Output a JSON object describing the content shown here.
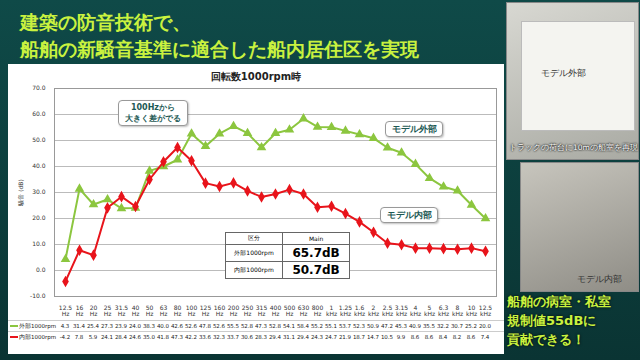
{
  "header": {
    "title": [
      "建築の防音技術で、",
      "船舶の新騒音基準に適合した船内居住区を実現"
    ]
  },
  "photos": {
    "labels": [
      "モデル外部",
      "トラックの荷台に10mの船室を再現",
      "モデル内部"
    ]
  },
  "note": [
    "船舶の病室・私室",
    "規制値55dBに",
    "貢献できる！"
  ],
  "chart_data": {
    "type": "line",
    "title": "回転数1000rpm時",
    "y_label": "騒音 (dB)",
    "categories": [
      "12.5Hz",
      "16Hz",
      "20Hz",
      "25Hz",
      "31.5Hz",
      "40Hz",
      "50Hz",
      "63Hz",
      "80Hz",
      "100Hz",
      "125Hz",
      "160Hz",
      "200Hz",
      "250Hz",
      "315Hz",
      "400Hz",
      "500Hz",
      "630Hz",
      "800Hz",
      "1kHz",
      "1.25kHz",
      "1.6kHz",
      "2kHz",
      "2.5kHz",
      "3.15kHz",
      "4kHz",
      "5kHz",
      "6.3kHz",
      "8kHz",
      "10kHz",
      "12.5kHz"
    ],
    "series": [
      {
        "name": "外部1000rpm",
        "color": "#8cc63f",
        "marker": "triangle",
        "values": [
          4.3,
          31.4,
          25.4,
          27.3,
          23.9,
          24.0,
          38.3,
          40.0,
          42.6,
          52.6,
          47.8,
          52.6,
          55.5,
          52.8,
          47.3,
          52.8,
          54.1,
          58.4,
          55.2,
          55.1,
          53.7,
          52.3,
          50.9,
          47.2,
          45.3,
          40.9,
          35.5,
          32.2,
          30.7,
          25.2,
          20.0
        ],
        "value_labels": [
          "4.3",
          "31.4",
          "25.4",
          "27.3",
          "23.9",
          "24.0",
          "38.3",
          "40.0",
          "42.6",
          "52.6",
          "47.8",
          "52.6",
          "55.5",
          "52.8",
          "47.3",
          "52.8",
          "54.1",
          "58.4",
          "55.2",
          "55.1",
          "53.7",
          "52.3",
          "50.9",
          "47.2",
          "45.3",
          "40.9",
          "35.5",
          "32.2",
          "30.7",
          "25.2",
          "20.0"
        ]
      },
      {
        "name": "内部1000rpm",
        "color": "#e8141b",
        "marker": "diamond",
        "values": [
          -4.2,
          7.8,
          5.9,
          24.1,
          28.4,
          24.6,
          35.0,
          41.8,
          47.3,
          42.2,
          33.6,
          32.3,
          33.7,
          30.6,
          28.3,
          29.4,
          31.1,
          29.4,
          24.3,
          24.7,
          21.9,
          18.7,
          14.7,
          10.5,
          9.9,
          8.6,
          8.6,
          8.4,
          8.2,
          8.6,
          7.4
        ],
        "value_labels": [
          "-4.2",
          "7.8",
          "5.9",
          "24.1",
          "28.4",
          "24.6",
          "35.0",
          "41.8",
          "47.3",
          "42.2",
          "33.6",
          "32.3",
          "33.7",
          "30.6",
          "28.3",
          "29.4",
          "31.1",
          "29.4",
          "24.3",
          "24.7",
          "21.9",
          "18.7",
          "14.7",
          "10.5",
          "9.9",
          "8.6",
          "8.6",
          "8.4",
          "8.2",
          "8.6",
          "7.4"
        ]
      }
    ],
    "ylim": [
      -10,
      70
    ],
    "yticks": [
      {
        "value": -10,
        "label": "-10.0"
      },
      {
        "value": 0,
        "label": "0.0"
      },
      {
        "value": 10,
        "label": "10.0"
      },
      {
        "value": 20,
        "label": "20.0"
      },
      {
        "value": 30,
        "label": "30.0"
      },
      {
        "value": 40,
        "label": "40.0"
      },
      {
        "value": 50,
        "label": "50.0"
      },
      {
        "value": 60,
        "label": "60.0"
      },
      {
        "value": 70,
        "label": "70.0"
      }
    ],
    "grid": true,
    "annotations": [
      "100Hzから\n大きく差がでる",
      "モデル外部",
      "モデル内部"
    ],
    "summary_table": {
      "header": [
        "区分",
        "Main"
      ],
      "rows": [
        [
          "外部1000rpm",
          "65.7dB"
        ],
        [
          "内部1000rpm",
          "50.7dB"
        ]
      ]
    }
  }
}
